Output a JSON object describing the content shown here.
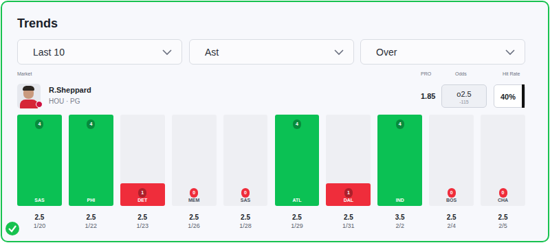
{
  "widget": {
    "title": "Trends",
    "filters": [
      "Last 10",
      "Ast",
      "Over"
    ],
    "market_label": "Market",
    "player": {
      "name": "R.Sheppard",
      "team_pos": "HOU · PG"
    },
    "columns": [
      "PRO",
      "Odds",
      "Hit Rate"
    ],
    "pro": "1.85",
    "odds": {
      "line": "o2.5",
      "price": "-115"
    },
    "hit_rate": "40%"
  },
  "chart_data": {
    "type": "bar",
    "categories": [
      "SAS",
      "PHI",
      "DET",
      "MEM",
      "SAS",
      "ATL",
      "DAL",
      "IND",
      "BOS",
      "CHA"
    ],
    "values": [
      4,
      4,
      1,
      0,
      0,
      4,
      1,
      4,
      0,
      0
    ],
    "lines": [
      2.5,
      2.5,
      2.5,
      2.5,
      2.5,
      2.5,
      2.5,
      3.5,
      2.5,
      2.5
    ],
    "dates": [
      "1/20",
      "1/22",
      "1/23",
      "1/26",
      "1/28",
      "1/29",
      "1/31",
      "2/2",
      "2/4",
      "2/5"
    ],
    "colors": [
      "#0bc154",
      "#0bc154",
      "#ef2d3b",
      "#ef2d3b",
      "#ef2d3b",
      "#0bc154",
      "#ef2d3b",
      "#0bc154",
      "#ef2d3b",
      "#ef2d3b"
    ],
    "ylim": [
      0,
      4
    ],
    "data_labels": true,
    "tick_labels": false,
    "grid": false
  }
}
